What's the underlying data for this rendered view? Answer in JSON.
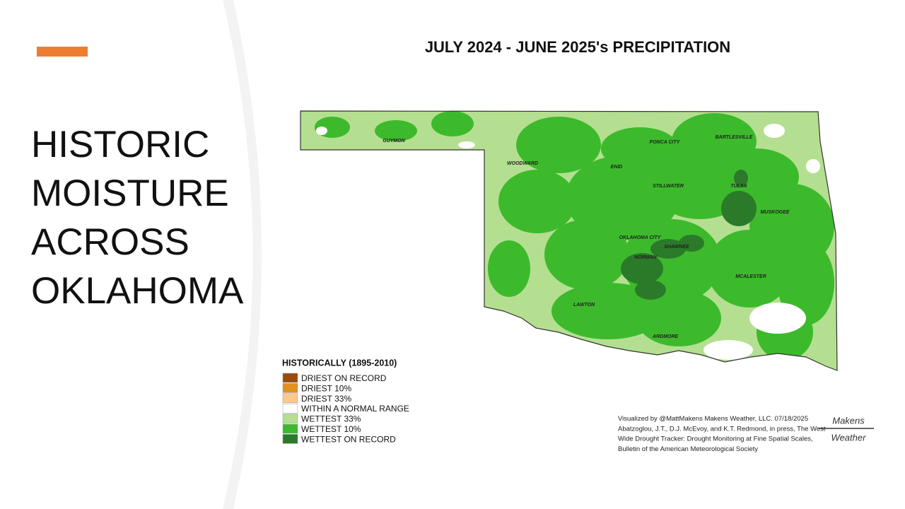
{
  "slide": {
    "title_lines": [
      "HISTORIC",
      "MOISTURE",
      "ACROSS",
      "OKLAHOMA"
    ]
  },
  "map": {
    "title": "JULY 2024 - JUNE 2025's PRECIPITATION",
    "cities": [
      "GUYMON",
      "WOODWARD",
      "PONCA CITY",
      "BARTLESVILLE",
      "ENID",
      "STILLWATER",
      "TULSA",
      "MUSKOGEE",
      "OKLAHOMA CITY",
      "SHAWNEE",
      "NORMAN",
      "MCALESTER",
      "LAWTON",
      "ARDMORE"
    ]
  },
  "legend": {
    "title": "HISTORICALLY (1895-2010)",
    "items": [
      {
        "label": "DRIEST ON RECORD",
        "color": "#9a4c0a"
      },
      {
        "label": "DRIEST 10%",
        "color": "#e3901f"
      },
      {
        "label": "DRIEST 33%",
        "color": "#fcc98a"
      },
      {
        "label": "WITHIN A NORMAL RANGE",
        "color": "#ffffff"
      },
      {
        "label": "WETTEST 33%",
        "color": "#b4df90"
      },
      {
        "label": "WETTEST 10%",
        "color": "#3cba2c"
      },
      {
        "label": "WETTEST ON RECORD",
        "color": "#2b7a2a"
      }
    ]
  },
  "credit": {
    "lines": [
      "Visualized by @MattMakens Makens Weather, LLC. 07/18/2025",
      "Abatzoglou, J.T., D.J. McEvoy, and K.T. Redmond, in press, The West",
      "Wide Drought Tracker: Drought Monitoring at Fine Spatial Scales,",
      "Bulletin of the American Meteorological Society"
    ]
  },
  "logo": {
    "top": "Makens",
    "bottom": "Weather"
  }
}
